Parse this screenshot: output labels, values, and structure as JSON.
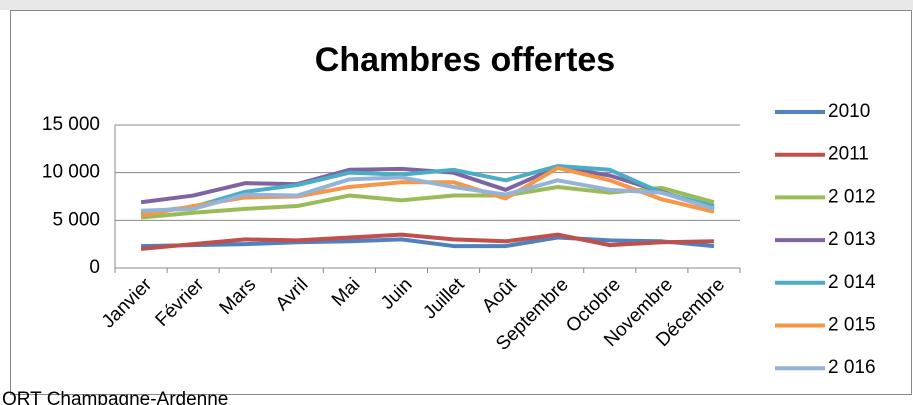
{
  "chart_data": {
    "type": "line",
    "title": "Chambres offertes",
    "categories": [
      "Janvier",
      "Février",
      "Mars",
      "Avril",
      "Mai",
      "Juin",
      "Juillet",
      "Août",
      "Septembre",
      "Octobre",
      "Novembre",
      "Décembre"
    ],
    "series": [
      {
        "name": "2010",
        "color": "#4f81bd",
        "values": [
          2300,
          2400,
          2500,
          2700,
          2800,
          3000,
          2300,
          2300,
          3200,
          2900,
          2800,
          2300
        ]
      },
      {
        "name": "2011",
        "color": "#c0504d",
        "values": [
          2000,
          2500,
          3000,
          2900,
          3200,
          3500,
          3000,
          2800,
          3500,
          2400,
          2700,
          2800
        ]
      },
      {
        "name": "2 012",
        "color": "#9bbb59",
        "values": [
          5300,
          5800,
          6200,
          6500,
          7600,
          7100,
          7600,
          7600,
          8500,
          7900,
          8400,
          6900
        ]
      },
      {
        "name": "2 013",
        "color": "#8064a2",
        "values": [
          6900,
          7600,
          8900,
          8800,
          10300,
          10400,
          10000,
          8200,
          10600,
          9700,
          8000,
          6200
        ]
      },
      {
        "name": "2 014",
        "color": "#4bacc6",
        "values": [
          5800,
          6400,
          8000,
          8700,
          10000,
          9800,
          10300,
          9200,
          10700,
          10300,
          7900,
          6500
        ]
      },
      {
        "name": "2 015",
        "color": "#f79646",
        "values": [
          5500,
          6500,
          7400,
          7500,
          8500,
          9000,
          9000,
          7300,
          10500,
          9200,
          7200,
          5900
        ]
      },
      {
        "name": "2 016",
        "color": "#95b3d7",
        "values": [
          6000,
          6200,
          7700,
          7600,
          9300,
          9500,
          8500,
          7700,
          9200,
          8200,
          7900,
          6200
        ]
      }
    ],
    "ylim": [
      0,
      15000
    ],
    "yticks": [
      0,
      {
        "value": 5000,
        "label": "5 000"
      },
      {
        "value": 10000,
        "label": "10 000"
      },
      {
        "value": 15000,
        "label": "15 000"
      }
    ],
    "grid": true,
    "legend": "right"
  },
  "footer": "ORT Champagne-Ardenne"
}
